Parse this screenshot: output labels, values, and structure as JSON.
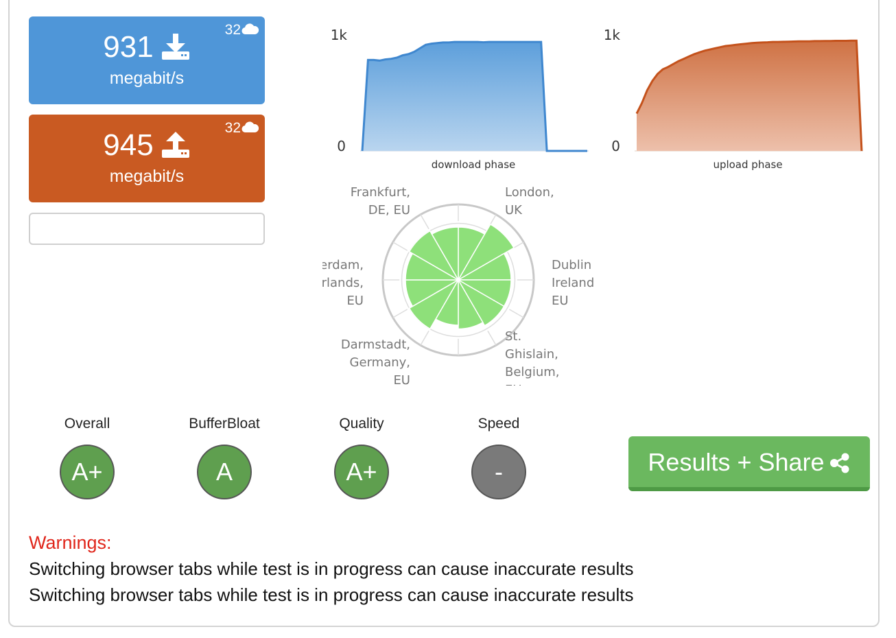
{
  "download": {
    "value": "931",
    "unit": "megabit/s",
    "connections": "32",
    "direction_icon": "download-icon",
    "connections_icon": "cloud-icon",
    "color": "#4f96d8"
  },
  "upload": {
    "value": "945",
    "unit": "megabit/s",
    "connections": "32",
    "direction_icon": "upload-icon",
    "connections_icon": "cloud-icon",
    "color": "#c95a22"
  },
  "chart_data": [
    {
      "type": "area",
      "xlabel": "download phase",
      "ylabel": "",
      "y_ticks": [
        "0",
        "1k"
      ],
      "ylim": [
        0,
        1000
      ],
      "color": "#4f96d8",
      "values": [
        0,
        780,
        780,
        775,
        785,
        790,
        800,
        820,
        830,
        850,
        880,
        910,
        920,
        925,
        930,
        930,
        935,
        935,
        935,
        935,
        935,
        932,
        935,
        935,
        935,
        935,
        935,
        935,
        935,
        935,
        935,
        935,
        0,
        0,
        0,
        0,
        0,
        0,
        0,
        0
      ]
    },
    {
      "type": "area",
      "xlabel": "upload phase",
      "ylabel": "",
      "y_ticks": [
        "0",
        "1k"
      ],
      "ylim": [
        0,
        1000
      ],
      "color": "#c95a22",
      "values": [
        320,
        410,
        520,
        600,
        660,
        700,
        720,
        745,
        770,
        790,
        810,
        830,
        845,
        860,
        870,
        880,
        890,
        900,
        905,
        910,
        915,
        920,
        925,
        928,
        930,
        932,
        935,
        935,
        936,
        937,
        938,
        940,
        940,
        940,
        942,
        942,
        943,
        943,
        944,
        944,
        944,
        945,
        945,
        0
      ]
    },
    {
      "type": "polar-area",
      "ring_max": 100,
      "color": "#8ee07a",
      "slices": [
        70,
        85,
        70,
        70,
        70,
        65,
        60,
        75,
        70,
        70,
        75,
        70
      ],
      "locations": [
        {
          "name": "Frankfurt,\nDE, EU",
          "anchor": "end"
        },
        {
          "name": "London,\nUK",
          "anchor": "start"
        },
        {
          "name": "Dublin\nIreland\nEU",
          "anchor": "start"
        },
        {
          "name": "St.\nGhislain,\nBelgium,\nEU",
          "anchor": "start"
        },
        {
          "name": "Darmstadt,\nGermany,\nEU",
          "anchor": "end"
        },
        {
          "name": "Amsterdam,\nNetherlands,\nEU",
          "anchor": "end"
        }
      ]
    }
  ],
  "grades": [
    {
      "label": "Overall",
      "grade": "A+",
      "status": "good"
    },
    {
      "label": "BufferBloat",
      "grade": "A",
      "status": "good"
    },
    {
      "label": "Quality",
      "grade": "A+",
      "status": "good"
    },
    {
      "label": "Speed",
      "grade": "-",
      "status": "none"
    }
  ],
  "share_button": {
    "label": "Results + Share",
    "icon": "share-icon"
  },
  "warnings": {
    "title": "Warnings:",
    "lines": [
      "Switching browser tabs while test is in progress can cause inaccurate results",
      "Switching browser tabs while test is in progress can cause inaccurate results"
    ]
  },
  "colors": {
    "good_grade": "#5f9f4f",
    "none_grade": "#7a7a7a",
    "warning": "#e0261b",
    "share_button": "#6bb85f"
  }
}
